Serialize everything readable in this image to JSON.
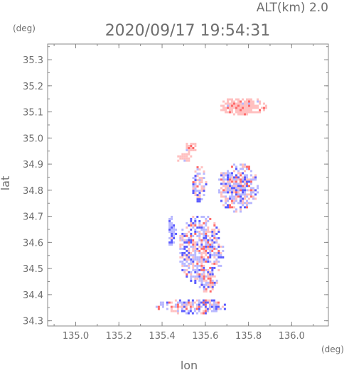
{
  "header": {
    "alt_label": "ALT(km)  2.0",
    "timestamp": "2020/09/17  19:54:31"
  },
  "colors": {
    "axis": "#8a8a8a",
    "text": "#6e6e6e",
    "negative": "#5a5aff",
    "positive": "#ff6a6a",
    "negative_light": "#b8b8ff",
    "positive_light": "#ffc0c0"
  },
  "chart_data": {
    "type": "heatmap",
    "title": "2020/09/17  19:54:31",
    "subtitle": "ALT(km)  2.0",
    "xlabel": "lon",
    "ylabel": "lat",
    "x_unit": "(deg)",
    "y_unit": "(deg)",
    "xlim": [
      134.87,
      136.17
    ],
    "ylim": [
      34.28,
      35.36
    ],
    "x_ticks": [
      "135.0",
      "135.2",
      "135.4",
      "135.6",
      "135.8",
      "136.0"
    ],
    "y_ticks": [
      "34.3",
      "34.4",
      "34.5",
      "34.6",
      "34.7",
      "34.8",
      "34.9",
      "35.0",
      "35.1",
      "35.2",
      "35.3"
    ],
    "grid": false,
    "echo_regions": [
      {
        "lon": [
          135.66,
          135.88
        ],
        "lat": [
          35.09,
          35.16
        ],
        "tone": "positive"
      },
      {
        "lon": [
          135.5,
          135.56
        ],
        "lat": [
          34.94,
          34.99
        ],
        "tone": "positive"
      },
      {
        "lon": [
          135.46,
          135.53
        ],
        "lat": [
          34.91,
          34.95
        ],
        "tone": "positive"
      },
      {
        "lon": [
          135.65,
          135.84
        ],
        "lat": [
          34.72,
          34.91
        ],
        "tone": "mixed"
      },
      {
        "lon": [
          135.53,
          135.6
        ],
        "lat": [
          34.76,
          34.9
        ],
        "tone": "mixed"
      },
      {
        "lon": [
          135.47,
          135.68
        ],
        "lat": [
          34.44,
          34.71
        ],
        "tone": "mixed"
      },
      {
        "lon": [
          135.56,
          135.65
        ],
        "lat": [
          34.41,
          34.49
        ],
        "tone": "mixed"
      },
      {
        "lon": [
          135.36,
          135.7
        ],
        "lat": [
          34.33,
          34.39
        ],
        "tone": "mixed"
      },
      {
        "lon": [
          135.42,
          135.46
        ],
        "lat": [
          34.58,
          34.71
        ],
        "tone": "negative"
      }
    ]
  }
}
